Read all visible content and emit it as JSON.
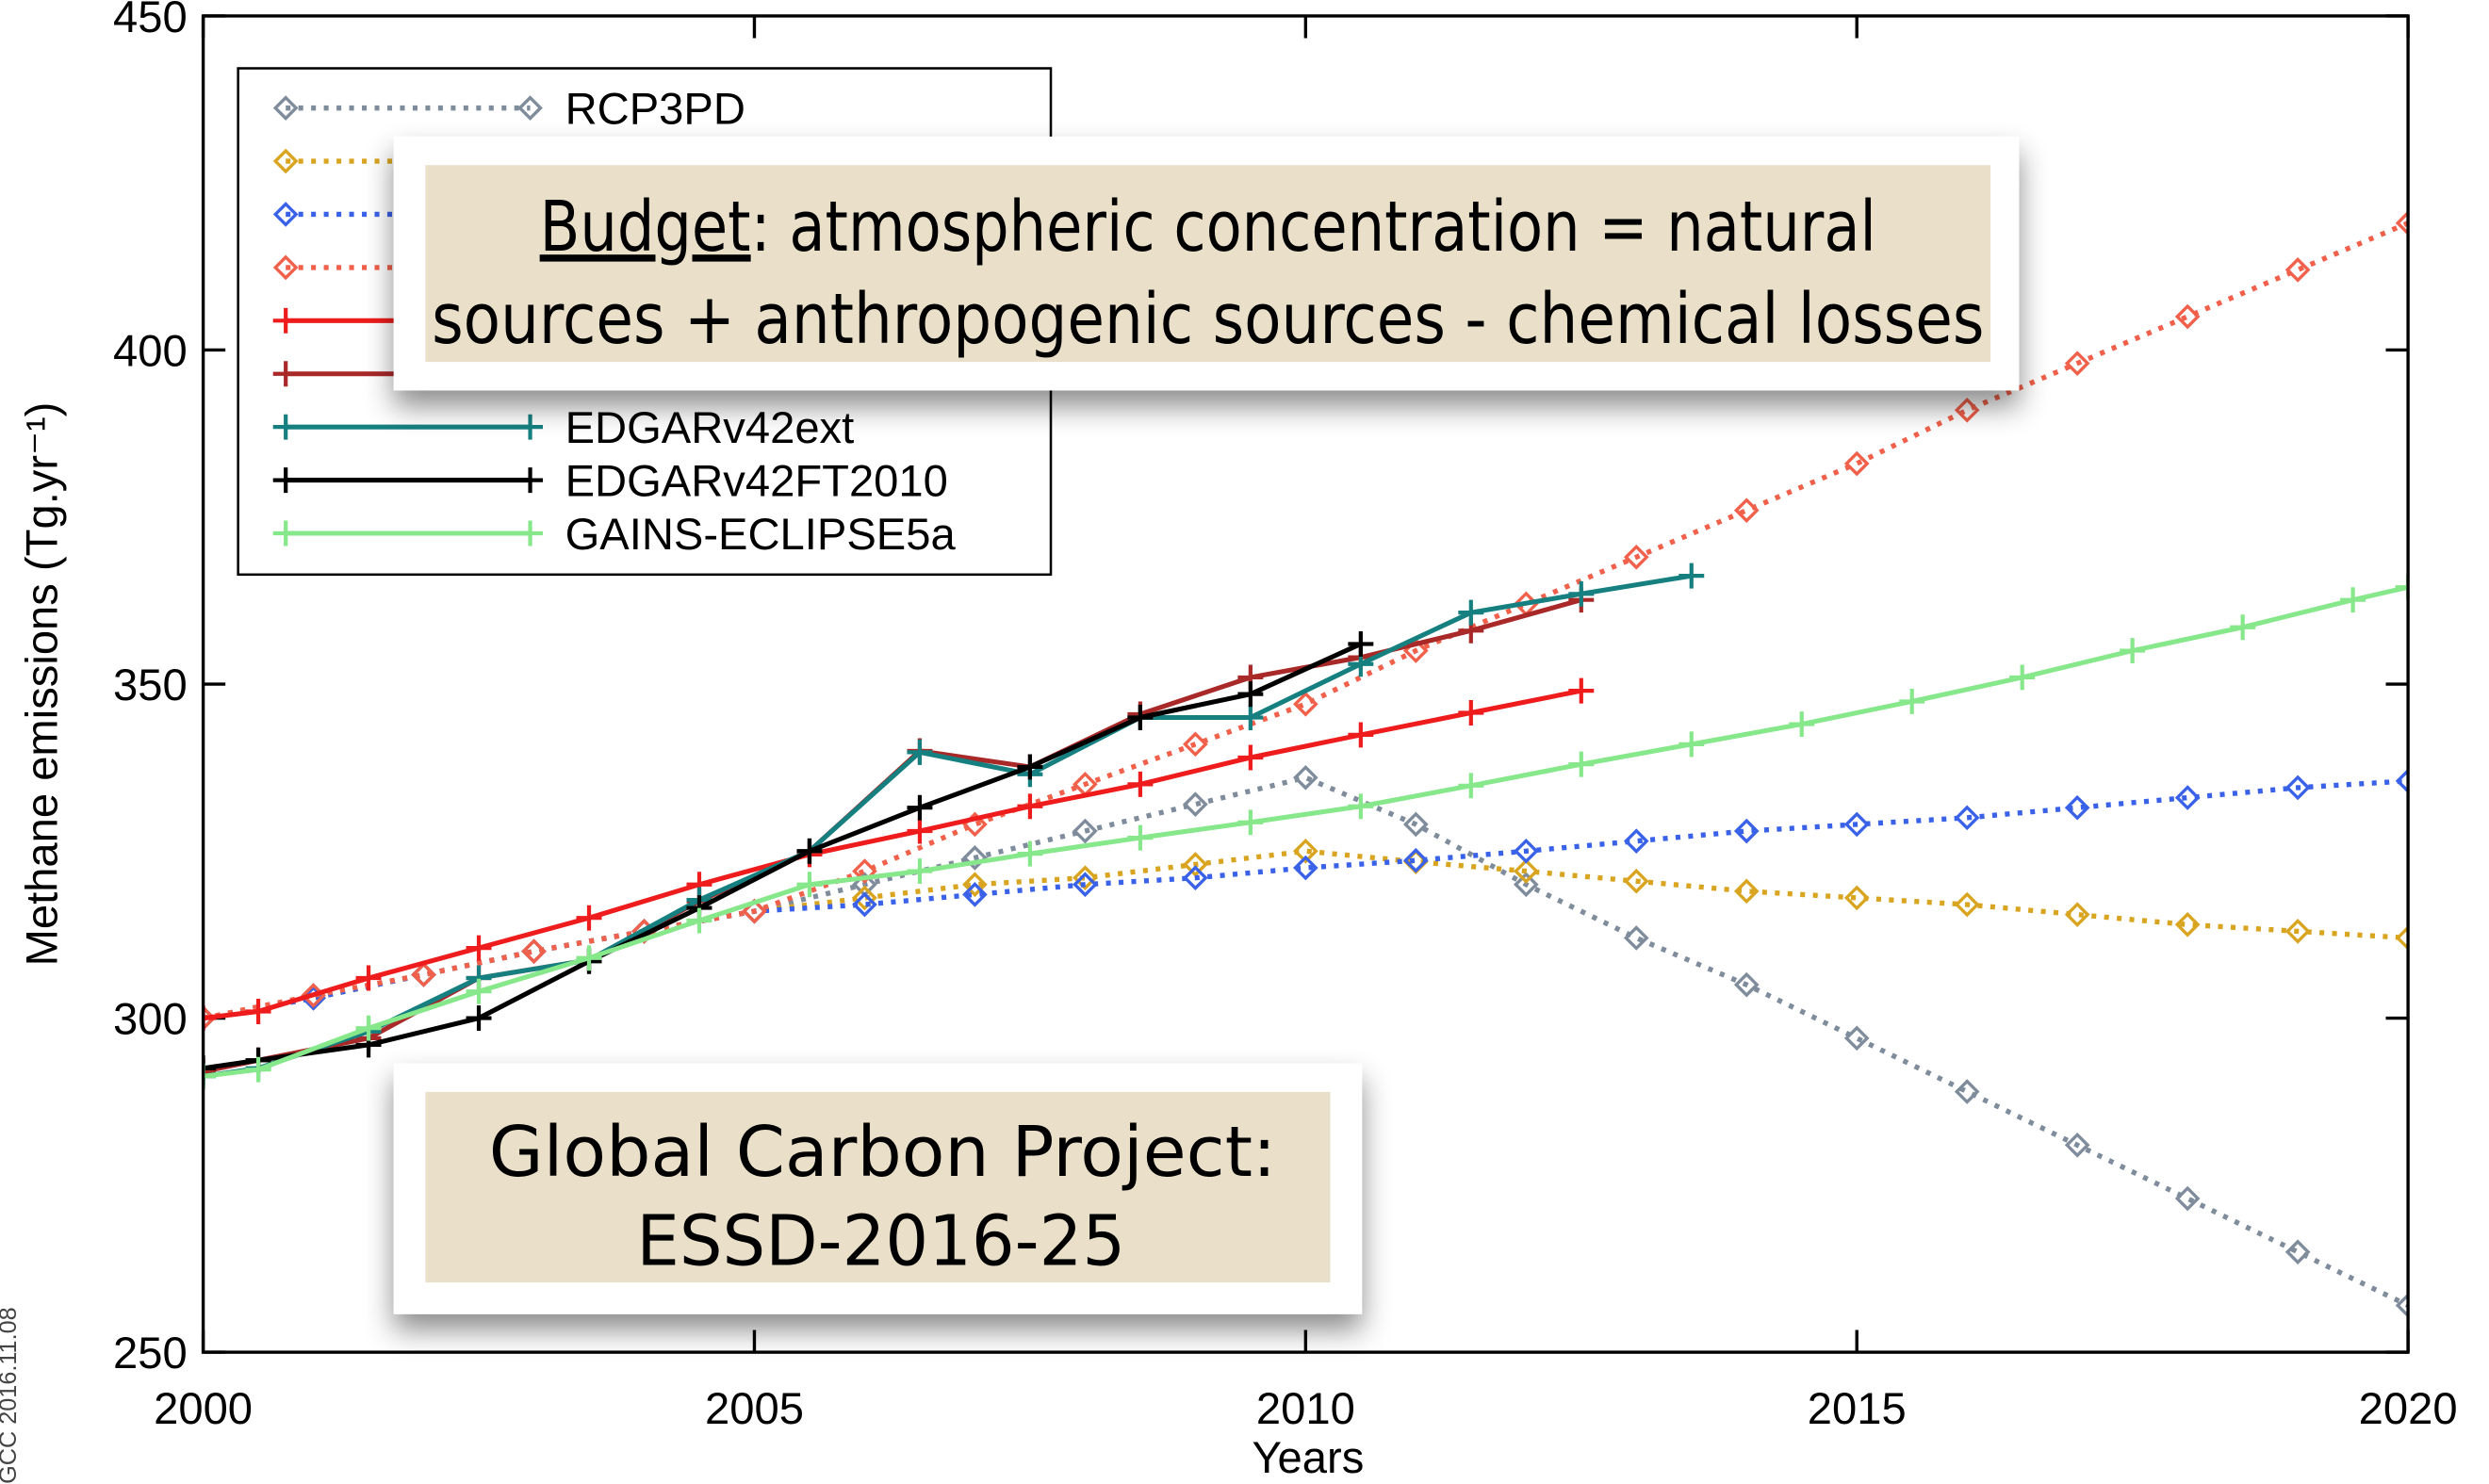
{
  "chart_data": {
    "type": "line",
    "xlabel": "Years",
    "ylabel": "Methane emissions (Tg.yr⁻¹)",
    "xlim": [
      2000,
      2020
    ],
    "ylim": [
      250,
      450
    ],
    "xticks": [
      2000,
      2005,
      2010,
      2015,
      2020
    ],
    "yticks": [
      250,
      300,
      350,
      400,
      450
    ],
    "legend": "upper left",
    "series": [
      {
        "name": "RCP3PD",
        "color": "#7f8c9b",
        "style": "dotted",
        "marker": "diamond",
        "x": [
          2000,
          2001,
          2002,
          2003,
          2004,
          2005,
          2006,
          2007,
          2008,
          2009,
          2010,
          2011,
          2012,
          2013,
          2014,
          2015,
          2016,
          2017,
          2018,
          2019,
          2020
        ],
        "values": [
          300,
          303,
          306.5,
          310,
          313,
          316,
          320,
          324,
          328,
          332,
          336,
          329,
          320,
          312,
          305,
          297,
          289,
          281,
          273,
          265,
          257
        ]
      },
      {
        "color": "#d9a520",
        "style": "dotted",
        "marker": "diamond",
        "x": [
          2000,
          2001,
          2002,
          2003,
          2004,
          2005,
          2006,
          2007,
          2008,
          2009,
          2010,
          2011,
          2012,
          2013,
          2014,
          2015,
          2016,
          2017,
          2018,
          2019,
          2020
        ],
        "values": [
          300,
          303,
          306.5,
          310,
          313,
          316,
          318,
          320,
          321,
          323,
          325,
          323.4,
          322,
          320.5,
          319,
          318,
          317,
          315.5,
          314,
          313,
          312
        ]
      },
      {
        "color": "#3a62e8",
        "style": "dotted",
        "marker": "diamond",
        "x": [
          2000,
          2001,
          2002,
          2003,
          2004,
          2005,
          2006,
          2007,
          2008,
          2009,
          2010,
          2011,
          2012,
          2013,
          2014,
          2015,
          2016,
          2017,
          2018,
          2019,
          2020
        ],
        "values": [
          300,
          303,
          306.5,
          310,
          313,
          316,
          317,
          318.5,
          320,
          321,
          322.5,
          323.6,
          325,
          326.5,
          328,
          329,
          330,
          331.5,
          333,
          334.5,
          335.5
        ]
      },
      {
        "color": "#f0604a",
        "style": "dotted",
        "marker": "diamond",
        "x": [
          2000,
          2001,
          2002,
          2003,
          2004,
          2005,
          2006,
          2007,
          2008,
          2009,
          2010,
          2011,
          2012,
          2013,
          2014,
          2015,
          2016,
          2017,
          2018,
          2019,
          2020
        ],
        "values": [
          300,
          303.4,
          306.5,
          310,
          313,
          316,
          322,
          329,
          335,
          341,
          347,
          355,
          362,
          369,
          376,
          383,
          391,
          398,
          405,
          412,
          419
        ]
      },
      {
        "color": "#ee1c1c",
        "style": "solid",
        "marker": "plus",
        "x": [
          2000,
          2000.5,
          2001.5,
          2002.5,
          2003.5,
          2004.5,
          2005.5,
          2006.5,
          2007.5,
          2008.5,
          2009.5,
          2010.5,
          2011.5,
          2012.5
        ],
        "values": [
          300,
          301,
          306,
          310.5,
          315,
          320,
          324.5,
          328,
          331.7,
          335,
          339,
          342.4,
          345.7,
          349
        ]
      },
      {
        "color": "#a92828",
        "style": "solid",
        "marker": "plus",
        "x": [
          2000,
          2000.5,
          2001.5,
          2002.5,
          2003.5,
          2004.5,
          2005.5,
          2006.5,
          2007.5,
          2008.5,
          2009.5,
          2010.5,
          2011.5,
          2012.5
        ],
        "values": [
          292,
          293.7,
          297,
          306,
          308.7,
          317.5,
          325,
          340,
          337.6,
          345.5,
          351,
          354,
          358,
          362.6
        ]
      },
      {
        "name": "EDGARv42ext",
        "color": "#168080",
        "style": "solid",
        "marker": "plus",
        "x": [
          2000,
          2000.5,
          2001.5,
          2002.5,
          2003.5,
          2004.5,
          2005.5,
          2006.5,
          2007.5,
          2008.5,
          2009.5,
          2010.5,
          2011.5,
          2012.5,
          2013.5
        ],
        "values": [
          291.3,
          292.5,
          298,
          306,
          308.7,
          317.7,
          325,
          339.8,
          336.5,
          345,
          345,
          353,
          360.7,
          363.5,
          366.2
        ]
      },
      {
        "name": "EDGARv42FT2010",
        "color": "#000000",
        "style": "solid",
        "marker": "plus",
        "x": [
          2000,
          2000.5,
          2001.5,
          2002.5,
          2003.5,
          2004.5,
          2005.5,
          2006.5,
          2007.5,
          2008.5,
          2009.5,
          2010.5
        ],
        "values": [
          292.5,
          293.7,
          296,
          300,
          308.5,
          316.5,
          325,
          331.5,
          337.6,
          345,
          348.5,
          356
        ]
      },
      {
        "name": "GAINS-ECLIPSE5a",
        "color": "#86e88a",
        "style": "solid",
        "marker": "plus",
        "x": [
          2000,
          2000.5,
          2001.5,
          2002.5,
          2003.5,
          2004.5,
          2005.5,
          2006.5,
          2007.5,
          2008.5,
          2009.5,
          2010.5,
          2011.5,
          2012.5,
          2013.5,
          2014.5,
          2015.5,
          2016.5,
          2017.5,
          2018.5,
          2019.5,
          2020
        ],
        "values": [
          291.3,
          292.3,
          298.5,
          304,
          309,
          314.6,
          320,
          322,
          324.6,
          327,
          329.3,
          331.7,
          334.8,
          338,
          341,
          344,
          347.4,
          351,
          355,
          358.5,
          362.6,
          364.5
        ]
      }
    ],
    "budget_note": {
      "emphasis": "Budget",
      "lines": [
        ": atmospheric concentration = natural",
        "sources + anthropogenic sources - chemical losses"
      ]
    },
    "source_note": [
      "Global Carbon Project:",
      "ESSD-2016-25"
    ],
    "credit": "GCC 2016.11.08"
  }
}
